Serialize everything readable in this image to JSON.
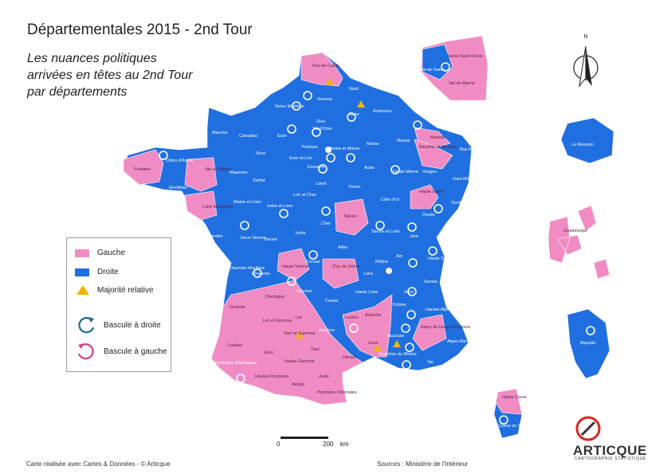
{
  "title": "Départementales 2015 - 2nd Tour",
  "subtitle": [
    "Les nuances politiques",
    "arrivées en têtes au 2nd Tour",
    "par départements"
  ],
  "colors": {
    "gauche": "#f08cc3",
    "droite": "#1f6fe0",
    "majorite": "#f5b400",
    "droite_arrow": "#1a6d86",
    "gauche_arrow": "#d63c8f"
  },
  "legend": {
    "gauche": "Gauche",
    "droite": "Droite",
    "majorite": "Majorité relative",
    "bascule_droite": "Bascule à droite",
    "bascule_gauche": "Bascule à gauche"
  },
  "labels": {
    "pas_de_calais": "Pas de Calais",
    "nord": "Nord",
    "somme": "Somme",
    "aisne": "Aisne",
    "ardennes": "Ardennes",
    "seine_maritime": "Seine Maritime",
    "manche": "Manche",
    "calvados": "Calvados",
    "eure": "Eure",
    "oise": "Oise",
    "val_d_oise": "Val d'Oise",
    "yvelines": "Yvelines",
    "essonne": "Essonne",
    "seine_et_marne": "Seine et Marne",
    "marne": "Marne",
    "meuse": "Meuse",
    "moselle": "Moselle",
    "bas_rhin": "Bas Rhin",
    "meurthe_et_moselle": "Meurthe et Moselle",
    "vosges": "Vosges",
    "haut_rhin": "Haut Rhin",
    "finistere": "Finistère",
    "cotes_d_armor": "Côtes d'Armor",
    "morbihan": "Morbihan",
    "ille_et_vilaine": "Ille et Vilaine",
    "mayenne": "Mayenne",
    "orne": "Orne",
    "sarthe": "Sarthe",
    "eure_et_loir": "Eure et Loir",
    "loiret": "Loiret",
    "aube": "Aube",
    "yonne": "Yonne",
    "haute_marne": "Haute Marne",
    "haute_saone": "Haute Saône",
    "territoire_de_belfort": "Territoire de Belfort",
    "loire_atlantique": "Loire Atlantique",
    "maine_et_loire": "Maine et Loire",
    "indre_et_loire": "Indre et Loire",
    "loir_et_cher": "Loir et Cher",
    "cher": "Cher",
    "nievre": "Nièvre",
    "cote_d_or": "Côte d'Or",
    "doubs": "Doubs",
    "vendee": "Vendée",
    "deux_sevres": "Deux Sèvres",
    "vienne": "Vienne",
    "indre": "Indre",
    "allier": "Allier",
    "saone_et_loire": "Saône et Loire",
    "jura": "Jura",
    "ain": "Ain",
    "haute_savoie": "Haute Savoie",
    "charente_maritime": "Charente Maritime",
    "charente": "Charente",
    "haute_vienne": "Haute Vienne",
    "creuse": "Creuse",
    "puy_de_dome": "Puy de Dôme",
    "loire": "Loire",
    "rhone": "Rhône",
    "savoie": "Savoie",
    "gironde": "Gironde",
    "dordogne": "Dordogne",
    "correze": "Corrèze",
    "cantal": "Cantal",
    "haute_loire": "Haute Loire",
    "isere": "Isère",
    "drome": "Drôme",
    "hautes_alpes": "Hautes Alpes",
    "landes": "Landes",
    "lot_et_garonne": "Lot et Garonne",
    "lot": "Lot",
    "aveyron": "Aveyron",
    "lozere": "Lozère",
    "ardeche": "Ardèche",
    "vaucluse": "Vaucluse",
    "alpes_de_haute_provence": "Alpes de Haute Provence",
    "alpes_maritimes": "Alpes Maritimes",
    "tarn_et_garonne": "Tarn et Garonne",
    "gers": "Gers",
    "tarn": "Tarn",
    "gard": "Gard",
    "bouches_du_rhone": "Bouches du Rhône",
    "var": "Var",
    "pyrenees_atlantiques": "Pyrénées Atlantiques",
    "hautes_pyrenees": "Hautes Pyrénées",
    "haute_garonne": "Haute Garonne",
    "herault": "Hérault",
    "aude": "Aude",
    "ariege": "Ariège",
    "pyrenees_orientales": "Pyrénées Orientales",
    "haute_corse": "Haute Corse",
    "corse_du_sud": "Corse du Sud",
    "seine_saint_denis": "Seine-Saint-Denis",
    "hauts_de_seine": "Hauts-de-Seine",
    "val_de_marne": "Val-de-Marne",
    "la_reunion": "La Réunion",
    "guadeloupe": "Guadeloupe",
    "mayotte": "Mayotte"
  },
  "north": "N",
  "scale": {
    "start": "0",
    "end": "200",
    "unit": "km"
  },
  "credit": "Carte réalisée avec Cartes & Données - © Articque",
  "sources": "Sources : Ministère de l'Intérieur",
  "logo": {
    "word": "ARTICQUE",
    "sub": "CARTOGRAPHIE STATISTIQUE"
  }
}
